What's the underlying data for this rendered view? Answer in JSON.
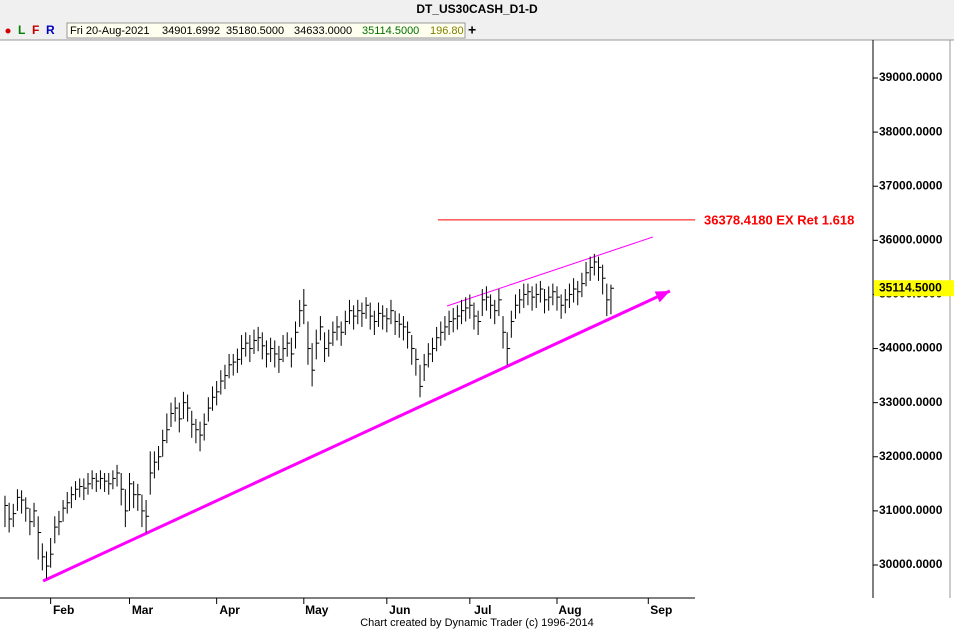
{
  "chart_data": {
    "type": "ohlc",
    "title": "DT_US30CASH_D1-D",
    "toolbar": [
      "L",
      "F",
      "R"
    ],
    "toolbar_add": "+",
    "header_info": {
      "date": "Fri 20-Aug-2021",
      "open": "34901.6992",
      "high": "35180.5000",
      "low": "34633.0000",
      "close": "35114.5000",
      "change": "196.80"
    },
    "footer": "Chart created by Dynamic Trader  (c) 1996-2014",
    "color": "#000000",
    "xlim": [
      -1.2,
      208.9
    ],
    "xticks": [
      {
        "value": 11,
        "label": "Feb"
      },
      {
        "value": 30,
        "label": "Mar"
      },
      {
        "value": 51,
        "label": "Apr"
      },
      {
        "value": 72,
        "label": "May"
      },
      {
        "value": 92,
        "label": "Jun"
      },
      {
        "value": 112,
        "label": "Jul"
      },
      {
        "value": 133,
        "label": "Aug"
      },
      {
        "value": 155,
        "label": "Sep"
      }
    ],
    "ylim": [
      29390,
      39702
    ],
    "yticks": [
      {
        "value": 30000,
        "label": "30000.0000"
      },
      {
        "value": 31000,
        "label": "31000.0000"
      },
      {
        "value": 32000,
        "label": "32000.0000"
      },
      {
        "value": 33000,
        "label": "33000.0000"
      },
      {
        "value": 34000,
        "label": "34000.0000"
      },
      {
        "value": 35000,
        "label": "35000.0000"
      },
      {
        "value": 36000,
        "label": "36000.0000"
      },
      {
        "value": 37000,
        "label": "37000.0000"
      },
      {
        "value": 38000,
        "label": "38000.0000"
      },
      {
        "value": 39000,
        "label": "39000.0000"
      }
    ],
    "last_price": {
      "value": 35114.5,
      "label": "35114.5000"
    },
    "ret_line": {
      "value": 36378.418,
      "label": "36378.4180 EX Ret 1.618",
      "color": "#ff0000",
      "x": [
        104.3,
        166.3
      ]
    },
    "trendlines": [
      {
        "color": "#ff00ff",
        "width": 3,
        "arrow": true,
        "x": [
          9.2,
          160.2
        ],
        "y": [
          29704,
          35063
        ]
      },
      {
        "color": "#ff00ff",
        "width": 1,
        "arrow": false,
        "x": [
          106.5,
          156.1
        ],
        "y": [
          34786,
          36061
        ]
      }
    ],
    "high": [
      31280,
      31150,
      31130,
      31400,
      31380,
      31250,
      31050,
      31150,
      30900,
      30400,
      30250,
      30500,
      30900,
      31000,
      31200,
      31350,
      31450,
      31550,
      31600,
      31600,
      31700,
      31750,
      31700,
      31750,
      31700,
      31700,
      31750,
      31850,
      31700,
      31400,
      31700,
      31550,
      31500,
      31300,
      31200,
      32100,
      32100,
      32200,
      32500,
      32800,
      33000,
      33100,
      33000,
      33200,
      33150,
      32850,
      32700,
      32650,
      32800,
      33100,
      33300,
      33400,
      33600,
      33700,
      33900,
      33900,
      34000,
      34250,
      34300,
      34250,
      34350,
      34400,
      34300,
      34150,
      34200,
      34150,
      34050,
      34250,
      34300,
      34200,
      34500,
      34900,
      35100,
      34500,
      34100,
      34350,
      34600,
      34300,
      34350,
      34500,
      34600,
      34500,
      34700,
      34900,
      34800,
      34900,
      34850,
      34950,
      34850,
      34700,
      34850,
      34800,
      34750,
      34900,
      34700,
      34650,
      34600,
      34500,
      34250,
      34000,
      33700,
      33900,
      34100,
      34200,
      34400,
      34500,
      34600,
      34700,
      34750,
      34800,
      34900,
      34950,
      35000,
      34850,
      34700,
      35100,
      35150,
      35000,
      34900,
      35100,
      34600,
      34300,
      34700,
      35000,
      35100,
      35200,
      35200,
      35150,
      35200,
      35250,
      35100,
      35150,
      35200,
      35150,
      35000,
      35100,
      35200,
      35300,
      35250,
      35400,
      35600,
      35700,
      35750,
      35700,
      35550,
      35200,
      35180.5
    ],
    "low": [
      30700,
      30600,
      30700,
      31000,
      30950,
      30800,
      30550,
      30700,
      30100,
      29900,
      29750,
      29950,
      30400,
      30550,
      30800,
      30950,
      31050,
      31200,
      31250,
      31200,
      31300,
      31400,
      31350,
      31400,
      31350,
      31300,
      31400,
      31450,
      31100,
      30700,
      31000,
      31050,
      31000,
      30700,
      30600,
      31300,
      31600,
      31750,
      32000,
      32250,
      32550,
      32650,
      32450,
      32700,
      32650,
      32350,
      32250,
      32100,
      32300,
      32650,
      32850,
      32950,
      33150,
      33250,
      33450,
      33500,
      33550,
      33700,
      33850,
      33750,
      33900,
      33950,
      33800,
      33650,
      33750,
      33650,
      33550,
      33750,
      33850,
      33650,
      34000,
      34400,
      34450,
      33700,
      33300,
      33800,
      34150,
      33750,
      33850,
      34050,
      34150,
      34050,
      34250,
      34450,
      34350,
      34450,
      34400,
      34550,
      34350,
      34250,
      34400,
      34350,
      34300,
      34450,
      34250,
      34200,
      34150,
      34000,
      33700,
      33500,
      33100,
      33400,
      33650,
      33750,
      33950,
      34050,
      34150,
      34250,
      34300,
      34350,
      34450,
      34500,
      34550,
      34350,
      34250,
      34600,
      34700,
      34550,
      34450,
      34600,
      34000,
      33700,
      34200,
      34550,
      34650,
      34750,
      34800,
      34700,
      34750,
      34850,
      34650,
      34700,
      34800,
      34700,
      34550,
      34650,
      34750,
      34850,
      34800,
      34950,
      35150,
      35250,
      35350,
      35250,
      35000,
      34600,
      34633
    ],
    "close": [
      31100,
      30850,
      30950,
      31250,
      31200,
      31050,
      30800,
      31000,
      30600,
      30150,
      29980,
      30200,
      30700,
      30800,
      31050,
      31150,
      31300,
      31400,
      31450,
      31420,
      31500,
      31600,
      31550,
      31600,
      31550,
      31500,
      31600,
      31700,
      31400,
      31000,
      31500,
      31300,
      31300,
      31000,
      30900,
      31700,
      31900,
      32000,
      32300,
      32500,
      32800,
      32900,
      32700,
      33000,
      32900,
      32600,
      32500,
      32400,
      32600,
      32900,
      33100,
      33200,
      33400,
      33500,
      33700,
      33750,
      33800,
      34000,
      34100,
      34000,
      34150,
      34200,
      34050,
      33900,
      34000,
      33900,
      33800,
      34000,
      34100,
      33900,
      34300,
      34700,
      34800,
      34000,
      33600,
      34100,
      34400,
      34000,
      34100,
      34300,
      34400,
      34300,
      34500,
      34700,
      34600,
      34700,
      34650,
      34800,
      34600,
      34500,
      34650,
      34600,
      34550,
      34700,
      34500,
      34450,
      34400,
      34300,
      34000,
      33800,
      33300,
      33700,
      33900,
      34000,
      34200,
      34300,
      34400,
      34500,
      34550,
      34600,
      34700,
      34750,
      34800,
      34600,
      34500,
      34900,
      34950,
      34800,
      34700,
      34900,
      34300,
      34000,
      34500,
      34800,
      34900,
      35000,
      35050,
      34950,
      35000,
      35100,
      34900,
      34950,
      35050,
      34950,
      34800,
      34900,
      35000,
      35100,
      35050,
      35200,
      35400,
      35500,
      35600,
      35500,
      35300,
      34900,
      35114.5
    ]
  }
}
